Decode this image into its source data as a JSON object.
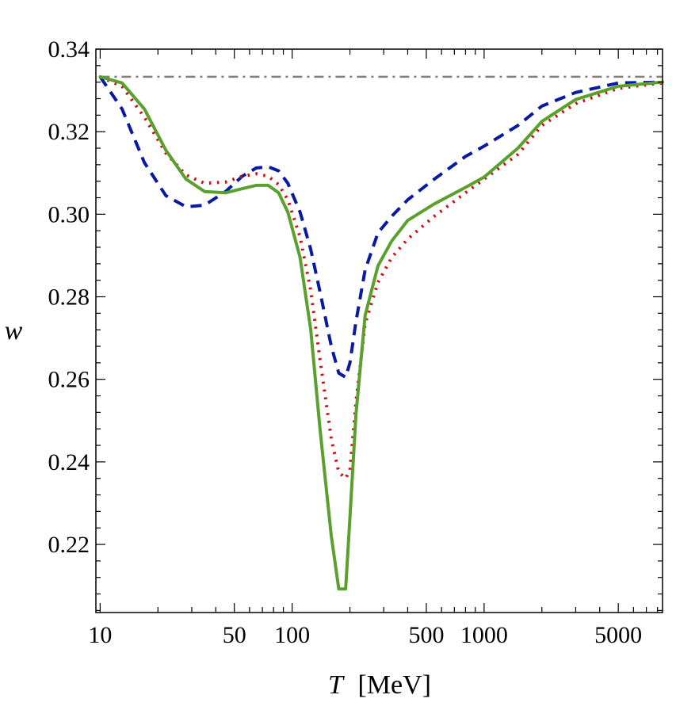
{
  "chart_data": {
    "type": "line",
    "xlabel_var": "T",
    "xlabel_unit": "[MeV]",
    "ylabel": "w",
    "x_scale": "log",
    "xlim": [
      9.5,
      8500
    ],
    "ylim": [
      0.2035,
      0.34
    ],
    "x_ticks": [
      10,
      50,
      100,
      500,
      1000,
      5000
    ],
    "x_tick_labels": [
      "10",
      "50",
      "100",
      "500",
      "1000",
      "5000"
    ],
    "y_ticks": [
      0.22,
      0.24,
      0.26,
      0.28,
      0.3,
      0.32,
      0.34
    ],
    "y_tick_labels": [
      "0.22",
      "0.24",
      "0.26",
      "0.28",
      "0.30",
      "0.32",
      "0.34"
    ],
    "grid": false,
    "legend": "none",
    "series": [
      {
        "style": "dashdot",
        "color": "#808080",
        "x": [
          10,
          8500
        ],
        "y": [
          0.3333,
          0.3333
        ]
      },
      {
        "style": "dashed",
        "color": "#0a1aa0",
        "x": [
          10,
          13,
          17,
          22,
          28,
          35,
          45,
          55,
          65,
          75,
          85,
          95,
          110,
          125,
          140,
          160,
          175,
          190,
          200,
          215,
          240,
          280,
          330,
          400,
          550,
          800,
          1000,
          1500,
          2000,
          3000,
          5000,
          8500
        ],
        "y": [
          0.3333,
          0.3255,
          0.3125,
          0.3045,
          0.3018,
          0.3022,
          0.3055,
          0.3092,
          0.3112,
          0.3115,
          0.3105,
          0.3075,
          0.3005,
          0.2915,
          0.281,
          0.268,
          0.2615,
          0.2605,
          0.264,
          0.274,
          0.2865,
          0.2955,
          0.2995,
          0.3035,
          0.3085,
          0.314,
          0.3165,
          0.3215,
          0.3262,
          0.3295,
          0.3318,
          0.332
        ]
      },
      {
        "style": "dotted",
        "color": "#cc1010",
        "x": [
          10,
          13,
          17,
          22,
          28,
          35,
          45,
          55,
          65,
          75,
          85,
          95,
          110,
          125,
          140,
          160,
          175,
          190,
          200,
          215,
          240,
          280,
          330,
          400,
          550,
          800,
          1000,
          1500,
          2000,
          3000,
          5000,
          8500
        ],
        "y": [
          0.3333,
          0.331,
          0.3235,
          0.3148,
          0.3095,
          0.3075,
          0.3078,
          0.3092,
          0.3098,
          0.3092,
          0.3072,
          0.3035,
          0.2945,
          0.2815,
          0.2645,
          0.2455,
          0.2375,
          0.236,
          0.238,
          0.2545,
          0.2735,
          0.2835,
          0.2895,
          0.294,
          0.2995,
          0.3052,
          0.3085,
          0.3145,
          0.3215,
          0.3268,
          0.3305,
          0.3318
        ]
      },
      {
        "style": "solid",
        "color": "#5aa02c",
        "x": [
          10,
          13,
          17,
          22,
          28,
          35,
          45,
          55,
          65,
          75,
          85,
          95,
          110,
          125,
          140,
          160,
          175,
          190,
          200,
          215,
          240,
          280,
          330,
          400,
          550,
          800,
          1000,
          1500,
          2000,
          3000,
          5000,
          8500
        ],
        "y": [
          0.3333,
          0.3318,
          0.3255,
          0.3155,
          0.3085,
          0.3055,
          0.3052,
          0.3062,
          0.307,
          0.307,
          0.3052,
          0.3005,
          0.2895,
          0.272,
          0.2475,
          0.222,
          0.2092,
          0.2092,
          0.2265,
          0.2515,
          0.2755,
          0.2875,
          0.2935,
          0.2985,
          0.3025,
          0.3065,
          0.309,
          0.316,
          0.3225,
          0.3278,
          0.331,
          0.332
        ]
      }
    ]
  }
}
